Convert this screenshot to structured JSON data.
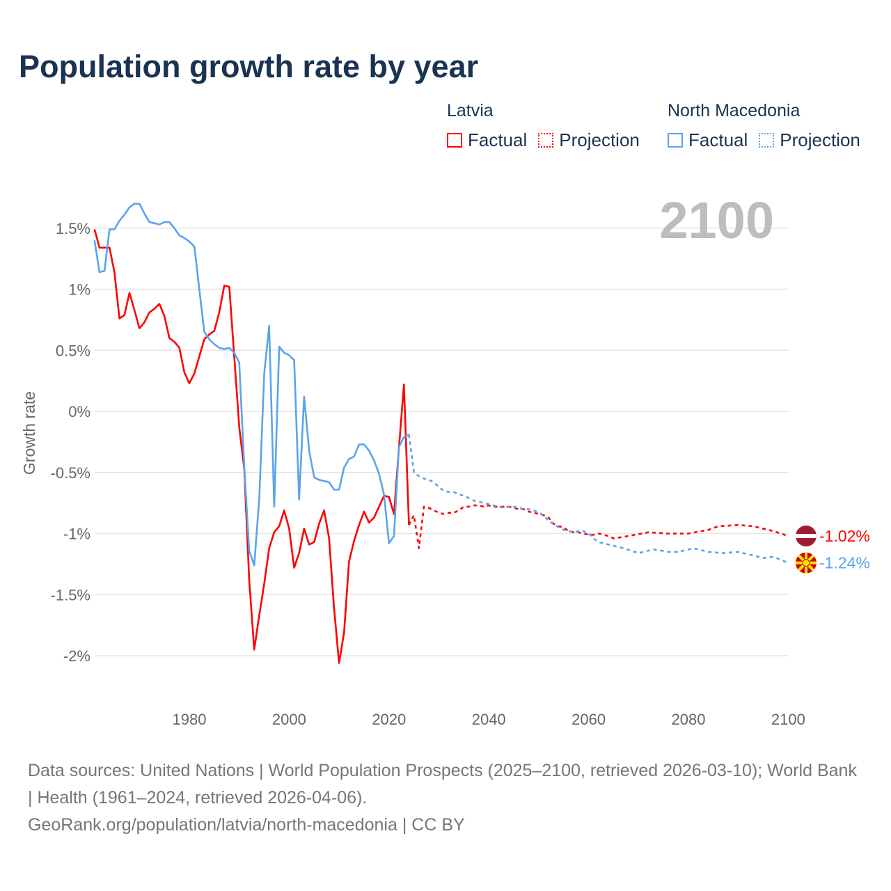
{
  "title": "Population growth rate by year",
  "legend": {
    "groups": [
      {
        "name": "Latvia",
        "factual": "Factual",
        "projection": "Projection",
        "color": "#ff0000"
      },
      {
        "name": "North Macedonia",
        "factual": "Factual",
        "projection": "Projection",
        "color": "#5ba3ec"
      }
    ]
  },
  "year_label": "2100",
  "footer": {
    "sources": "Data sources: United Nations | World Population Prospects (2025–2100, retrieved 2026-03-10); World Bank | Health (1961–2024, retrieved 2026-04-06).",
    "credit": "GeoRank.org/population/latvia/north-macedonia | CC BY"
  },
  "chart_data": {
    "type": "line",
    "title": "Population growth rate by year",
    "xlabel": "",
    "ylabel": "Growth rate",
    "xlim": [
      1961,
      2100
    ],
    "ylim": [
      -2.3,
      1.85
    ],
    "x_ticks": [
      1980,
      2000,
      2020,
      2040,
      2060,
      2080,
      2100
    ],
    "x_tick_labels": [
      "1980",
      "2000",
      "2020",
      "2040",
      "2060",
      "2080",
      "2100"
    ],
    "y_ticks": [
      1.5,
      1,
      0.5,
      0,
      -0.5,
      -1,
      -1.5,
      -2
    ],
    "y_tick_labels": [
      "1.5%",
      "1%",
      "0.5%",
      "0%",
      "-0.5%",
      "-1%",
      "-1.5%",
      "-2%"
    ],
    "grid": true,
    "legend_position": "top-right",
    "series": [
      {
        "name": "Latvia",
        "kind": "Factual",
        "color": "#ff0000",
        "dashed": false,
        "x_start": 1961,
        "values": [
          1.49,
          1.34,
          1.34,
          1.34,
          1.14,
          0.76,
          0.79,
          0.97,
          0.83,
          0.68,
          0.73,
          0.81,
          0.84,
          0.88,
          0.78,
          0.6,
          0.57,
          0.52,
          0.32,
          0.23,
          0.31,
          0.45,
          0.59,
          0.63,
          0.66,
          0.81,
          1.03,
          1.02,
          0.45,
          -0.13,
          -0.47,
          -1.38,
          -1.95,
          -1.67,
          -1.41,
          -1.12,
          -0.99,
          -0.94,
          -0.81,
          -0.96,
          -1.28,
          -1.16,
          -0.96,
          -1.09,
          -1.07,
          -0.92,
          -0.81,
          -1.04,
          -1.61,
          -2.06,
          -1.81,
          -1.23,
          -1.06,
          -0.93,
          -0.82,
          -0.91,
          -0.87,
          -0.78,
          -0.69,
          -0.7,
          -0.84,
          -0.3,
          0.22,
          -0.93
        ]
      },
      {
        "name": "Latvia",
        "kind": "Projection",
        "color": "#ff0000",
        "dashed": true,
        "x": [
          2024,
          2025,
          2026,
          2027,
          2028,
          2029,
          2030,
          2031,
          2032,
          2033,
          2034,
          2035,
          2036,
          2037,
          2038,
          2039,
          2040,
          2041,
          2042,
          2043,
          2044,
          2045,
          2046,
          2047,
          2048,
          2049,
          2050,
          2051,
          2052,
          2053,
          2054,
          2055,
          2056,
          2057,
          2058,
          2059,
          2060,
          2061,
          2062,
          2063,
          2064,
          2065,
          2068,
          2072,
          2076,
          2080,
          2084,
          2086,
          2090,
          2093,
          2097,
          2100
        ],
        "values": [
          -0.93,
          -0.85,
          -1.12,
          -0.78,
          -0.79,
          -0.81,
          -0.83,
          -0.84,
          -0.83,
          -0.83,
          -0.81,
          -0.78,
          -0.78,
          -0.77,
          -0.77,
          -0.78,
          -0.77,
          -0.78,
          -0.78,
          -0.78,
          -0.78,
          -0.79,
          -0.8,
          -0.8,
          -0.82,
          -0.83,
          -0.84,
          -0.85,
          -0.87,
          -0.92,
          -0.94,
          -0.95,
          -0.98,
          -0.99,
          -0.99,
          -1.0,
          -1.01,
          -1.01,
          -1.0,
          -1.01,
          -1.02,
          -1.04,
          -1.02,
          -0.99,
          -1.0,
          -1.0,
          -0.97,
          -0.94,
          -0.93,
          -0.94,
          -0.98,
          -1.02
        ]
      },
      {
        "name": "North Macedonia",
        "kind": "Factual",
        "color": "#5ba3ec",
        "dashed": false,
        "x_start": 1961,
        "values": [
          1.4,
          1.14,
          1.15,
          1.49,
          1.49,
          1.56,
          1.61,
          1.67,
          1.7,
          1.7,
          1.62,
          1.55,
          1.54,
          1.53,
          1.55,
          1.55,
          1.5,
          1.44,
          1.42,
          1.39,
          1.35,
          1.0,
          0.65,
          0.59,
          0.55,
          0.52,
          0.51,
          0.52,
          0.48,
          0.4,
          -0.45,
          -1.14,
          -1.26,
          -0.72,
          0.31,
          0.7,
          -0.78,
          0.53,
          0.48,
          0.46,
          0.42,
          -0.72,
          0.12,
          -0.32,
          -0.54,
          -0.56,
          -0.57,
          -0.58,
          -0.64,
          -0.64,
          -0.46,
          -0.39,
          -0.37,
          -0.27,
          -0.27,
          -0.32,
          -0.4,
          -0.51,
          -0.68,
          -1.08,
          -1.02,
          -0.29,
          -0.21,
          -0.19
        ]
      },
      {
        "name": "North Macedonia",
        "kind": "Projection",
        "color": "#5ba3ec",
        "dashed": true,
        "x": [
          2024,
          2025,
          2026,
          2027,
          2028,
          2029,
          2030,
          2031,
          2032,
          2033,
          2034,
          2035,
          2036,
          2037,
          2038,
          2039,
          2040,
          2041,
          2042,
          2043,
          2044,
          2045,
          2046,
          2047,
          2048,
          2049,
          2050,
          2051,
          2052,
          2053,
          2054,
          2055,
          2056,
          2057,
          2058,
          2059,
          2060,
          2061,
          2062,
          2063,
          2064,
          2067,
          2070,
          2073,
          2076,
          2078,
          2081,
          2084,
          2087,
          2090,
          2092,
          2095,
          2097,
          2100
        ],
        "values": [
          -0.19,
          -0.5,
          -0.53,
          -0.55,
          -0.56,
          -0.58,
          -0.62,
          -0.65,
          -0.66,
          -0.66,
          -0.68,
          -0.69,
          -0.71,
          -0.73,
          -0.74,
          -0.75,
          -0.76,
          -0.77,
          -0.78,
          -0.79,
          -0.78,
          -0.78,
          -0.79,
          -0.8,
          -0.8,
          -0.81,
          -0.83,
          -0.85,
          -0.9,
          -0.92,
          -0.95,
          -0.97,
          -0.98,
          -0.99,
          -0.98,
          -0.98,
          -1.0,
          -1.04,
          -1.07,
          -1.08,
          -1.09,
          -1.12,
          -1.16,
          -1.13,
          -1.15,
          -1.15,
          -1.12,
          -1.15,
          -1.16,
          -1.15,
          -1.17,
          -1.2,
          -1.19,
          -1.24
        ]
      }
    ],
    "end_labels": [
      {
        "name": "Latvia",
        "value": -1.02,
        "text": "-1.02%",
        "color": "#ff0000"
      },
      {
        "name": "North Macedonia",
        "value": -1.24,
        "text": "-1.24%",
        "color": "#5ba3ec"
      }
    ]
  }
}
